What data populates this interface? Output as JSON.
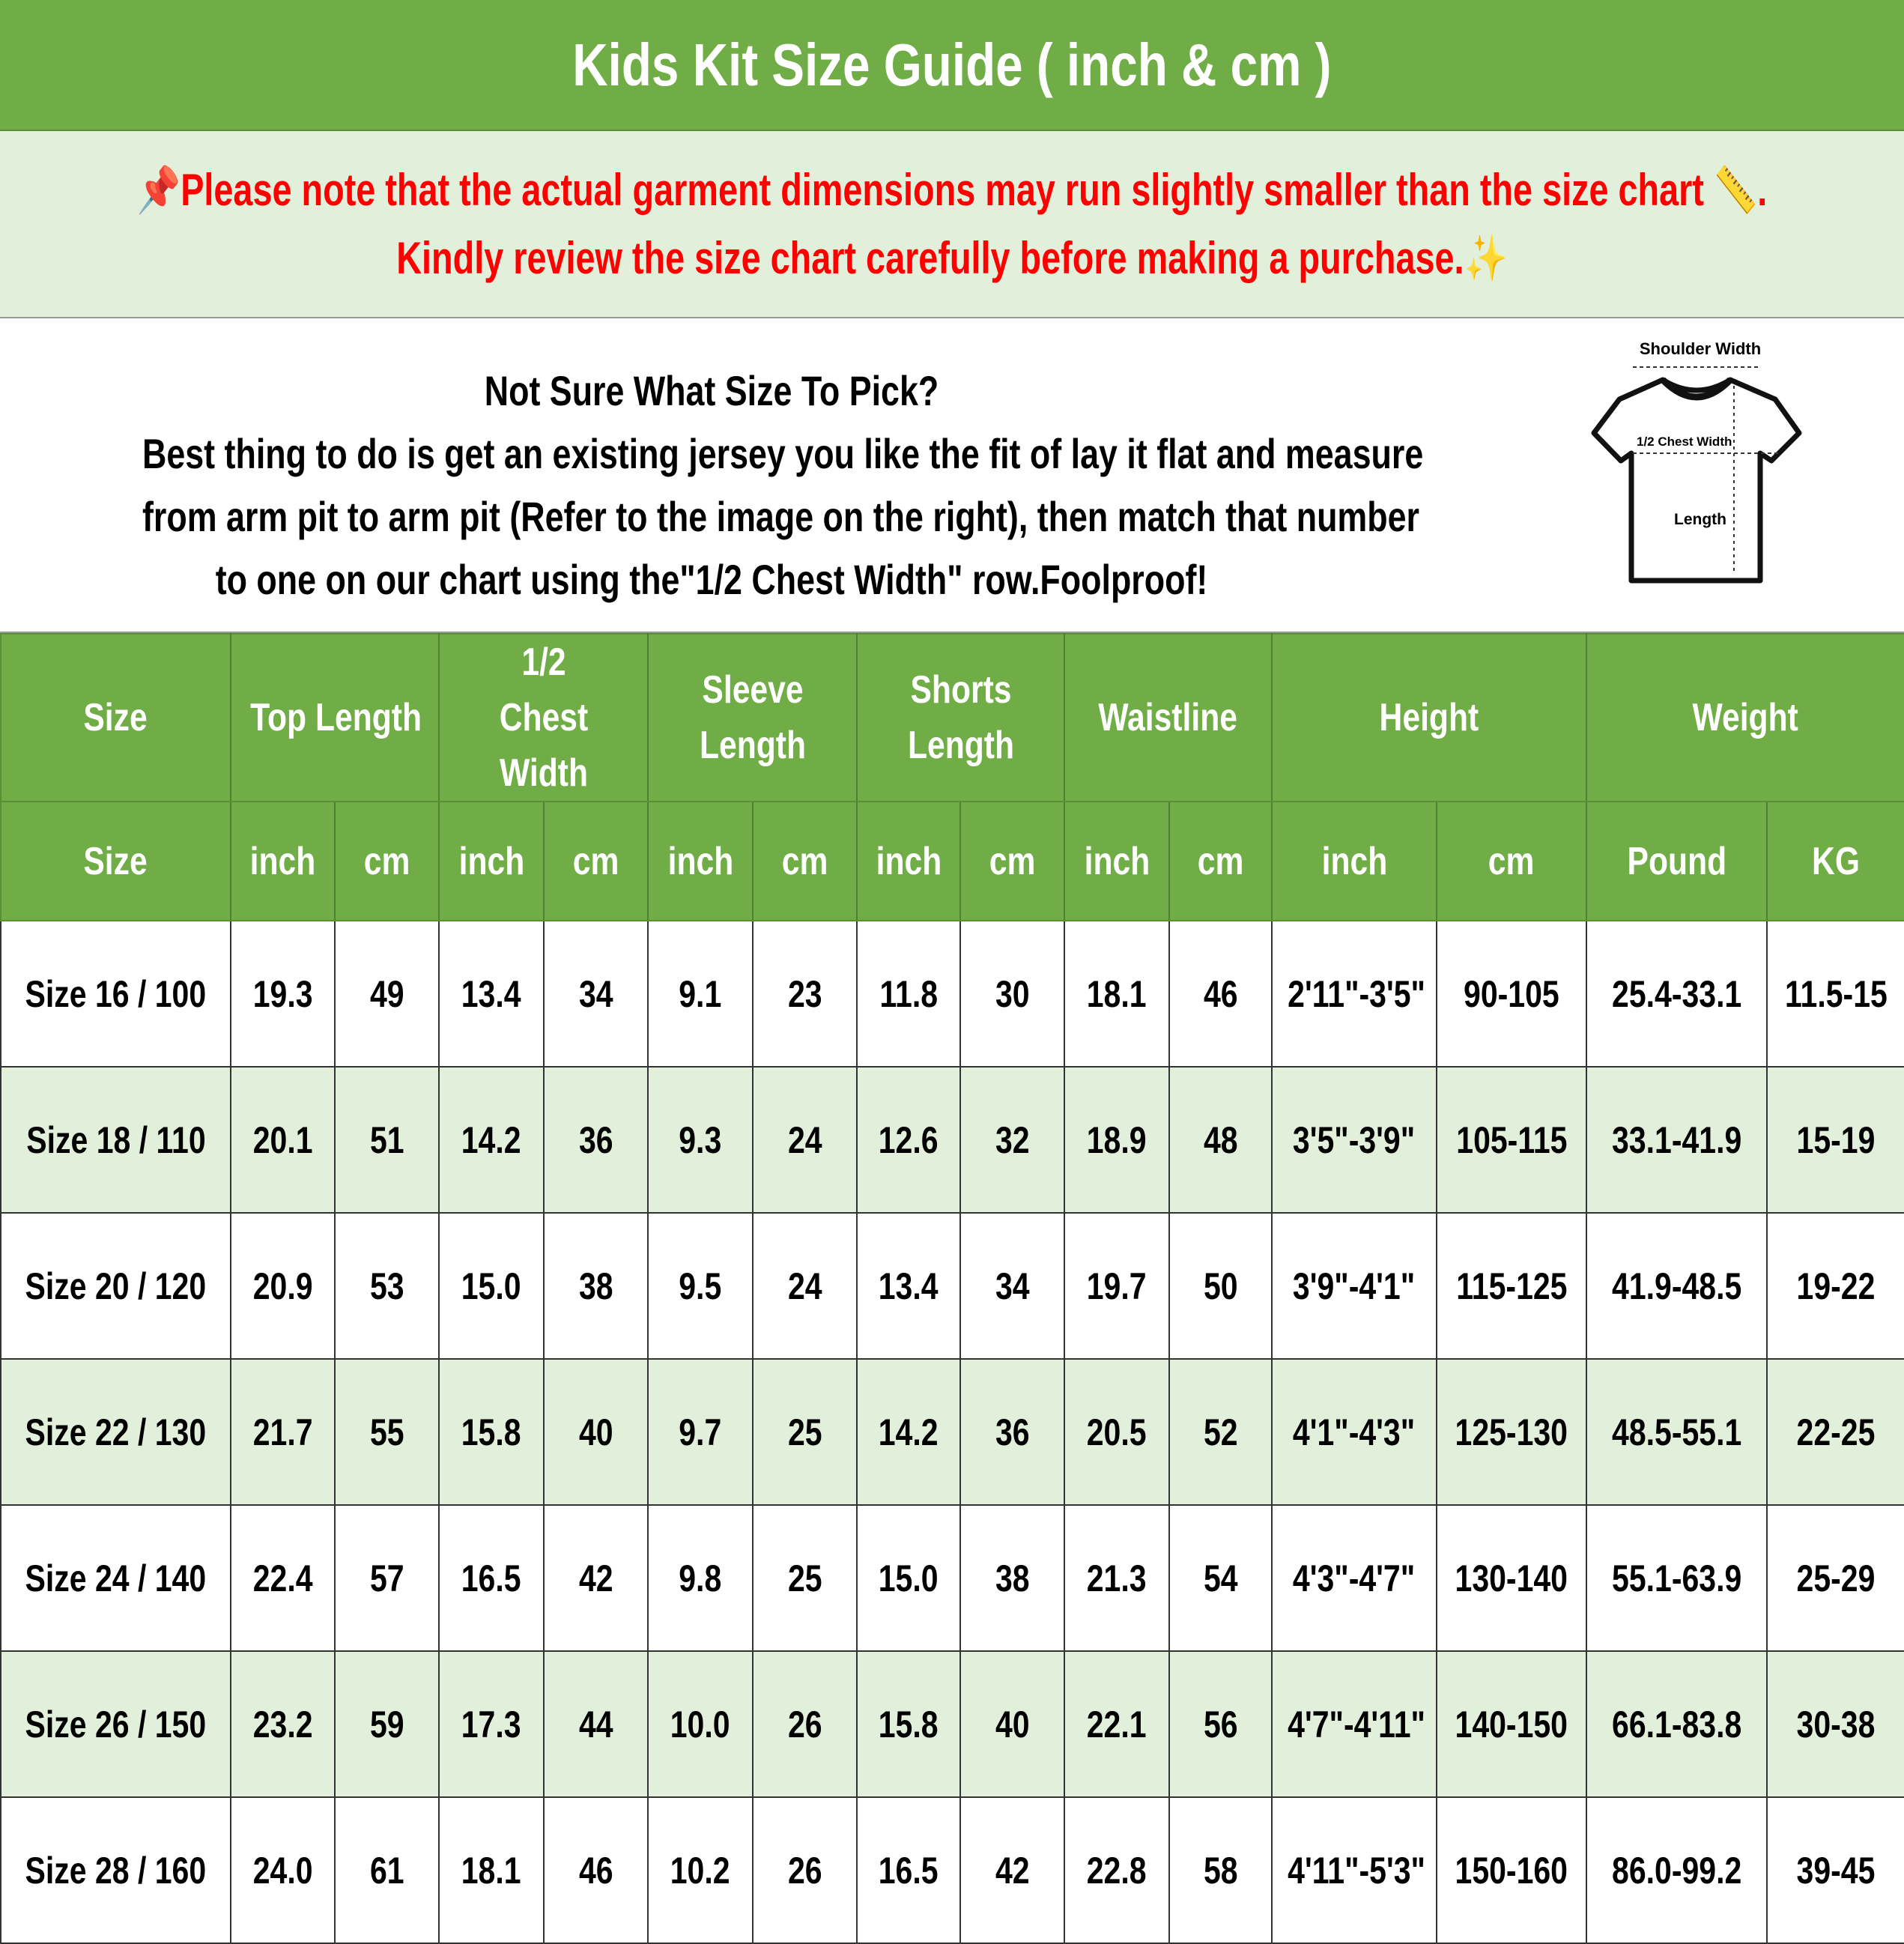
{
  "title": "Kids Kit Size Guide ( inch & cm )",
  "notice": {
    "line1": "📌Please note that the actual garment dimensions may run slightly smaller than the size chart 📏.",
    "line2": "Kindly review the size chart carefully before making a purchase.✨",
    "color": "#ff0000"
  },
  "info": {
    "heading": "Not Sure What Size To Pick?",
    "lines": [
      "Best thing to do is get an existing jersey you like the fit of lay it flat and measure",
      "from arm pit to arm pit (Refer to the image on the right), then match that number",
      "to one on our chart using the\"1/2 Chest Width\" row.Foolproof!"
    ]
  },
  "diagram": {
    "shoulder": "Shoulder Width",
    "chest": "1/2 Chest Width",
    "length": "Length"
  },
  "colors": {
    "header": "#70ad47",
    "band": "#e2efda"
  },
  "table": {
    "groups": [
      "Size",
      "Top Length",
      "1/2 Chest Width",
      "Sleeve Length",
      "Shorts Length",
      "Waistline",
      "Height",
      "Weight"
    ],
    "units": [
      "Size",
      "inch",
      "cm",
      "inch",
      "cm",
      "inch",
      "cm",
      "inch",
      "cm",
      "inch",
      "cm",
      "inch",
      "cm",
      "Pound",
      "KG"
    ],
    "rows": [
      [
        "Size 16 / 100",
        "19.3",
        "49",
        "13.4",
        "34",
        "9.1",
        "23",
        "11.8",
        "30",
        "18.1",
        "46",
        "2'11\"-3'5\"",
        "90-105",
        "25.4-33.1",
        "11.5-15"
      ],
      [
        "Size 18 / 110",
        "20.1",
        "51",
        "14.2",
        "36",
        "9.3",
        "24",
        "12.6",
        "32",
        "18.9",
        "48",
        "3'5\"-3'9\"",
        "105-115",
        "33.1-41.9",
        "15-19"
      ],
      [
        "Size 20 / 120",
        "20.9",
        "53",
        "15.0",
        "38",
        "9.5",
        "24",
        "13.4",
        "34",
        "19.7",
        "50",
        "3'9\"-4'1\"",
        "115-125",
        "41.9-48.5",
        "19-22"
      ],
      [
        "Size 22 / 130",
        "21.7",
        "55",
        "15.8",
        "40",
        "9.7",
        "25",
        "14.2",
        "36",
        "20.5",
        "52",
        "4'1\"-4'3\"",
        "125-130",
        "48.5-55.1",
        "22-25"
      ],
      [
        "Size 24 / 140",
        "22.4",
        "57",
        "16.5",
        "42",
        "9.8",
        "25",
        "15.0",
        "38",
        "21.3",
        "54",
        "4'3\"-4'7\"",
        "130-140",
        "55.1-63.9",
        "25-29"
      ],
      [
        "Size 26 / 150",
        "23.2",
        "59",
        "17.3",
        "44",
        "10.0",
        "26",
        "15.8",
        "40",
        "22.1",
        "56",
        "4'7\"-4'11\"",
        "140-150",
        "66.1-83.8",
        "30-38"
      ],
      [
        "Size 28 / 160",
        "24.0",
        "61",
        "18.1",
        "46",
        "10.2",
        "26",
        "16.5",
        "42",
        "22.8",
        "58",
        "4'11\"-5'3\"",
        "150-160",
        "86.0-99.2",
        "39-45"
      ]
    ]
  }
}
